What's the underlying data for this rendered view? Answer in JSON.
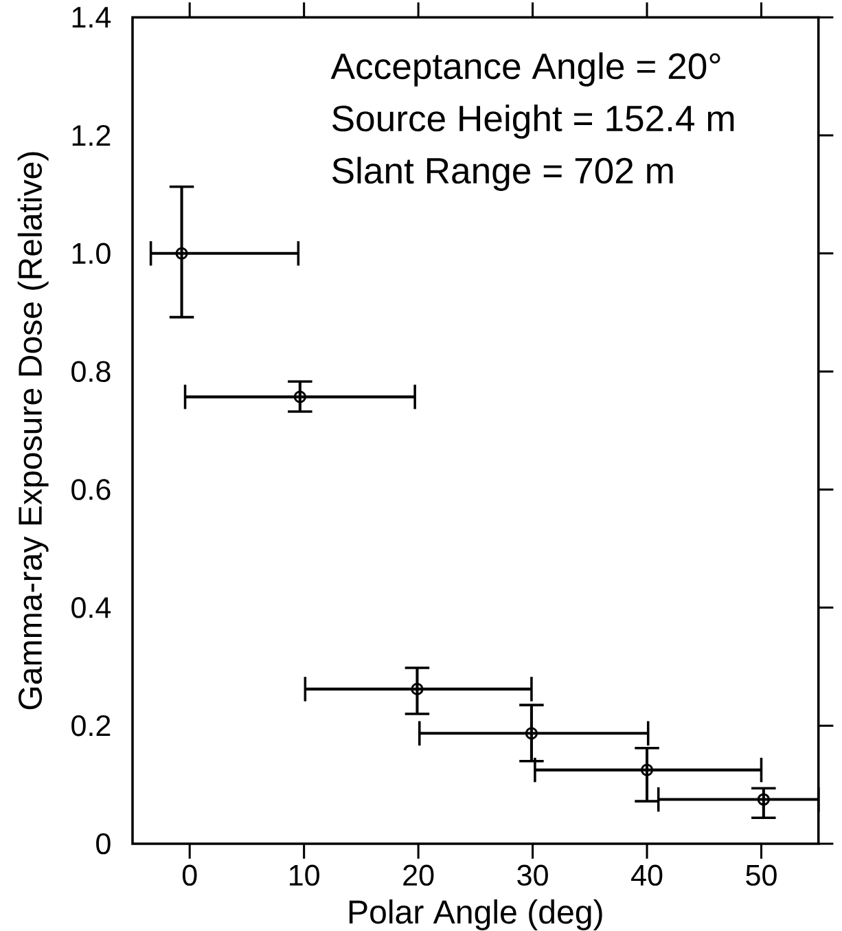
{
  "chart_data": {
    "type": "scatter",
    "xlabel": "Polar Angle (deg)",
    "ylabel": "Gamma-ray Exposure Dose (Relative)",
    "annotations": [
      "Acceptance Angle = 20°",
      "Source Height = 152.4 m",
      "Slant Range = 702 m"
    ],
    "x": [
      -0.7,
      9.65,
      19.9,
      29.9,
      40,
      50.2
    ],
    "values": [
      1.0,
      0.757,
      0.262,
      0.187,
      0.125,
      0.075
    ],
    "errors": [
      [
        0.892,
        1.113
      ],
      [
        0.732,
        0.783
      ],
      [
        0.22,
        0.298
      ],
      [
        0.14,
        0.235
      ],
      [
        0.072,
        0.162
      ],
      [
        0.044,
        0.094
      ]
    ],
    "xerrors": [
      [
        -3.4,
        9.5
      ],
      [
        -0.4,
        19.7
      ],
      [
        10.1,
        29.9
      ],
      [
        20.1,
        40.1
      ],
      [
        30.2,
        50
      ],
      [
        41,
        55
      ]
    ],
    "color": "#000000",
    "marker": "circle",
    "grid": false,
    "xlim": [
      -5,
      55
    ],
    "xticks": [
      0,
      10,
      20,
      30,
      40,
      50
    ],
    "ylim": [
      0,
      1.4
    ],
    "yticks": [
      0,
      0.2,
      0.4,
      0.6,
      0.8,
      {
        "value": 1.0,
        "label": "1.0"
      },
      1.2,
      1.4
    ]
  }
}
